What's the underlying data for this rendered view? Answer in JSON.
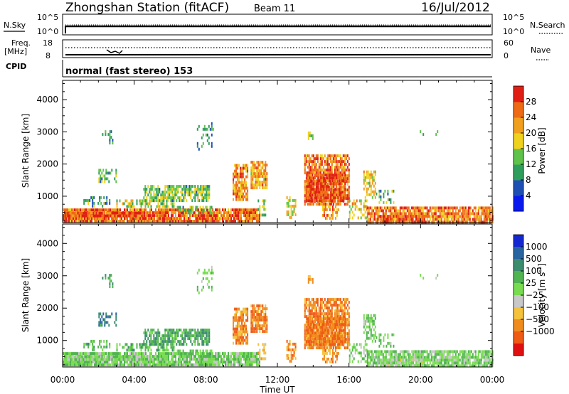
{
  "header": {
    "station": "Zhongshan Station (fitACF)",
    "beam": "Beam 11",
    "date": "16/Jul/2012"
  },
  "top_panels": {
    "nsky_label": "N.Sky",
    "nsky_ticks": [
      "10^5",
      "10^0"
    ],
    "nsearch_label": "N.Search",
    "nsearch_ticks": [
      "10^5",
      "10^0"
    ],
    "freq_label_1": "Freq.",
    "freq_label_2": "[MHz]",
    "freq_ticks": [
      "18",
      "8"
    ],
    "nave_label": "Nave",
    "nave_ticks": [
      "60",
      "0"
    ],
    "cpid_label": "CPID",
    "mode_text": "normal (fast stereo) 153"
  },
  "colors": {
    "power": [
      "#0a1aef",
      "#1e50b4",
      "#2f9e5c",
      "#5fc24a",
      "#f0d21e",
      "#f0a01e",
      "#ef6a14",
      "#e01e14"
    ],
    "velocity": [
      "#e01010",
      "#ef5a14",
      "#f08c1e",
      "#f5c23c",
      "#c8c8c8",
      "#78dc50",
      "#50b450",
      "#3c8c6e",
      "#2864a0",
      "#1428d2"
    ]
  },
  "chart_data": [
    {
      "type": "heatmap",
      "title": "Power",
      "xlabel": "Time UT",
      "ylabel": "Slant Range [km]",
      "x_ticks": [
        "00:00",
        "04:00",
        "08:00",
        "12:00",
        "16:00",
        "20:00",
        "00:00"
      ],
      "xlim_hours": [
        0,
        24
      ],
      "y_ticks": [
        1000,
        2000,
        3000,
        4000
      ],
      "ylim": [
        180,
        4600
      ],
      "colorbar": {
        "label": "Power [dB]",
        "ticks": [
          4,
          8,
          12,
          16,
          20,
          24,
          28
        ],
        "range": [
          0,
          32
        ]
      }
    },
    {
      "type": "heatmap",
      "title": "Velocity",
      "xlabel": "Time UT",
      "ylabel": "Slant Range [km]",
      "x_ticks": [
        "00:00",
        "04:00",
        "08:00",
        "12:00",
        "16:00",
        "20:00",
        "00:00"
      ],
      "xlim_hours": [
        0,
        24
      ],
      "y_ticks": [
        1000,
        2000,
        3000,
        4000
      ],
      "ylim": [
        180,
        4600
      ],
      "colorbar": {
        "label": "Velocity [m s^-1]",
        "label_main": "Velocity [m s",
        "label_sup": "-1",
        "label_end": "]",
        "ticks": [
          "1000",
          "500",
          "100",
          "25",
          "−25",
          "−100",
          "−500",
          "−1000"
        ]
      }
    }
  ],
  "scatter_regions": [
    {
      "t0": 0.0,
      "t1": 11.0,
      "r0": 200,
      "r1": 620,
      "d": 0.92,
      "p": 0.85,
      "v": 0.58
    },
    {
      "t0": 0.1,
      "t1": 4.4,
      "r0": 350,
      "r1": 520,
      "d": 0.95,
      "p": 0.9,
      "v": 0.55
    },
    {
      "t0": 3.0,
      "t1": 6.2,
      "r0": 650,
      "r1": 900,
      "d": 0.5,
      "p": 0.45,
      "v": 0.63
    },
    {
      "t0": 4.5,
      "t1": 8.2,
      "r0": 850,
      "r1": 1350,
      "d": 0.72,
      "p": 0.42,
      "v": 0.7
    },
    {
      "t0": 6.3,
      "t1": 8.3,
      "r0": 500,
      "r1": 700,
      "d": 0.55,
      "p": 0.4,
      "v": 0.62
    },
    {
      "t0": 1.0,
      "t1": 2.6,
      "r0": 700,
      "r1": 1000,
      "d": 0.35,
      "p": 0.3,
      "v": 0.62
    },
    {
      "t0": 2.0,
      "t1": 3.0,
      "r0": 1450,
      "r1": 1850,
      "d": 0.45,
      "p": 0.35,
      "v": 0.82
    },
    {
      "t0": 2.2,
      "t1": 2.9,
      "r0": 2650,
      "r1": 3050,
      "d": 0.2,
      "p": 0.25,
      "v": 0.72
    },
    {
      "t0": 7.5,
      "t1": 8.4,
      "r0": 2500,
      "r1": 3300,
      "d": 0.2,
      "p": 0.3,
      "v": 0.6
    },
    {
      "t0": 9.5,
      "t1": 10.3,
      "r0": 900,
      "r1": 2000,
      "d": 0.8,
      "p": 0.75,
      "v": 0.22
    },
    {
      "t0": 10.5,
      "t1": 11.4,
      "r0": 1300,
      "r1": 2100,
      "d": 0.8,
      "p": 0.72,
      "v": 0.2
    },
    {
      "t0": 10.9,
      "t1": 11.3,
      "r0": 420,
      "r1": 900,
      "d": 0.35,
      "p": 0.45,
      "v": 0.3
    },
    {
      "t0": 12.5,
      "t1": 13.0,
      "r0": 300,
      "r1": 1000,
      "d": 0.55,
      "p": 0.55,
      "v": 0.22
    },
    {
      "t0": 13.5,
      "t1": 16.0,
      "r0": 750,
      "r1": 2300,
      "d": 0.8,
      "p": 0.85,
      "v": 0.2
    },
    {
      "t0": 13.6,
      "t1": 15.8,
      "r0": 900,
      "r1": 1700,
      "d": 0.85,
      "p": 0.95,
      "v": 0.18
    },
    {
      "t0": 14.5,
      "t1": 15.4,
      "r0": 300,
      "r1": 800,
      "d": 0.55,
      "p": 0.8,
      "v": 0.25
    },
    {
      "t0": 13.7,
      "t1": 14.0,
      "r0": 2800,
      "r1": 3100,
      "d": 0.35,
      "p": 0.4,
      "v": 0.3
    },
    {
      "t0": 16.8,
      "t1": 17.5,
      "r0": 1000,
      "r1": 1800,
      "d": 0.6,
      "p": 0.6,
      "v": 0.6
    },
    {
      "t0": 16.0,
      "t1": 17.0,
      "r0": 300,
      "r1": 900,
      "d": 0.55,
      "p": 0.6,
      "v": 0.55
    },
    {
      "t0": 17.0,
      "t1": 24.0,
      "r0": 200,
      "r1": 680,
      "d": 0.88,
      "p": 0.8,
      "v": 0.58
    },
    {
      "t0": 17.5,
      "t1": 20.5,
      "r0": 200,
      "r1": 420,
      "d": 0.6,
      "p": 0.95,
      "v": 0.5
    },
    {
      "t0": 19.0,
      "t1": 22.0,
      "r0": 2850,
      "r1": 3050,
      "d": 0.06,
      "p": 0.25,
      "v": 0.55
    },
    {
      "t0": 17.5,
      "t1": 18.5,
      "r0": 800,
      "r1": 1200,
      "d": 0.3,
      "p": 0.4,
      "v": 0.6
    }
  ]
}
